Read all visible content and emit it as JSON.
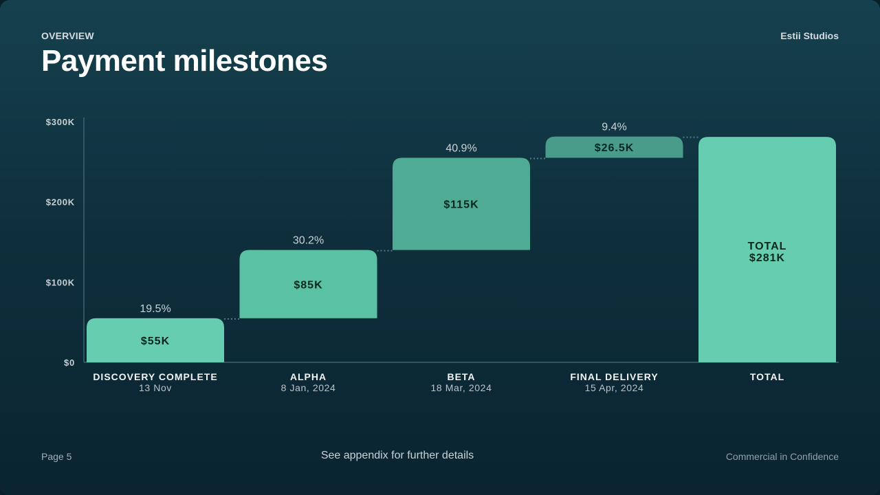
{
  "header": {
    "eyebrow": "OVERVIEW",
    "title": "Payment milestones",
    "brand": "Estii Studios"
  },
  "footer": {
    "page": "Page 5",
    "note": "See appendix for further details",
    "confidentiality": "Commercial in Confidence"
  },
  "colors": {
    "bar_light": "#66cdb0",
    "bar_mid": "#5ac2a3",
    "bar_dark": "#4fab94",
    "bar_darker": "#4a9c8a",
    "total": "#66cdb0"
  },
  "chart_data": {
    "type": "bar",
    "subtype": "waterfall",
    "ylim": [
      0,
      300
    ],
    "y_ticks": [
      {
        "value": 0,
        "label": "$0"
      },
      {
        "value": 100,
        "label": "$100K"
      },
      {
        "value": 200,
        "label": "$200K"
      },
      {
        "value": 300,
        "label": "$300K"
      }
    ],
    "steps": [
      {
        "name": "DISCOVERY COMPLETE",
        "date": "13 Nov",
        "value": 55,
        "label": "$55K",
        "percent": "19.5%",
        "color": "#66cdb0"
      },
      {
        "name": "ALPHA",
        "date": "8 Jan, 2024",
        "value": 85,
        "label": "$85K",
        "percent": "30.2%",
        "color": "#5ac2a3"
      },
      {
        "name": "BETA",
        "date": "18 Mar, 2024",
        "value": 115,
        "label": "$115K",
        "percent": "40.9%",
        "color": "#4fab94"
      },
      {
        "name": "FINAL DELIVERY",
        "date": "15 Apr, 2024",
        "value": 26.5,
        "label": "$26.5K",
        "percent": "9.4%",
        "color": "#4a9c8a"
      }
    ],
    "total": {
      "name": "TOTAL",
      "value": 281,
      "label_line1": "TOTAL",
      "label_line2": "$281K",
      "color": "#66cdb0"
    }
  }
}
